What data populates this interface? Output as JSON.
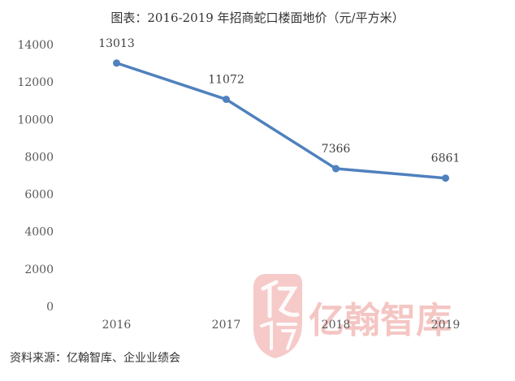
{
  "title": "图表：2016-2019 年招商蛇口楼面地价（元/平方米）",
  "source": "资料来源：亿翰智库、企业业绩会",
  "watermark": {
    "text": "亿翰智库",
    "color": "#f2b8b5"
  },
  "colors": {
    "line": "#4f81bd",
    "marker": "#4f81bd"
  },
  "chart_data": {
    "type": "line",
    "categories": [
      "2016",
      "2017",
      "2018",
      "2019"
    ],
    "values": [
      13013,
      11072,
      7366,
      6861
    ],
    "data_labels": [
      "13013",
      "11072",
      "7366",
      "6861"
    ],
    "title": "图表：2016-2019 年招商蛇口楼面地价（元/平方米）",
    "xlabel": "",
    "ylabel": "",
    "ylim": [
      0,
      14000
    ],
    "yticks": [
      0,
      2000,
      4000,
      6000,
      8000,
      10000,
      12000,
      14000
    ],
    "ytick_labels": [
      "0",
      "2000",
      "4000",
      "6000",
      "8000",
      "10000",
      "12000",
      "14000"
    ],
    "grid": false,
    "legend": "none"
  }
}
